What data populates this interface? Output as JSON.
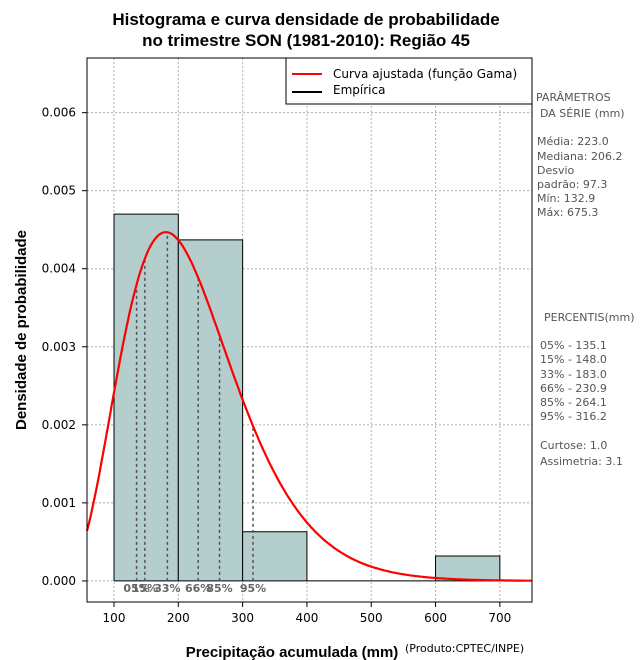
{
  "chart_data": {
    "type": "bar",
    "title": "Histograma e curva densidade de probabilidade",
    "subtitle": "no trimestre SON (1981-2010): Região 45",
    "xlabel": "Precipitação acumulada (mm)",
    "ylabel": "Densidade de probabilidade",
    "credit": "(Produto:CPTEC/INPE)",
    "xlim": [
      58,
      750
    ],
    "ylim": [
      -0.00027,
      0.0067
    ],
    "x_ticks": [
      100,
      200,
      300,
      400,
      500,
      600,
      700
    ],
    "y_ticks": [
      0.0,
      0.001,
      0.002,
      0.003,
      0.004,
      0.005,
      0.006
    ],
    "y_tick_labels": [
      "0.000",
      "0.001",
      "0.002",
      "0.003",
      "0.004",
      "0.005",
      "0.006"
    ],
    "grid": true,
    "bins": [
      {
        "x0": 100,
        "x1": 200,
        "density": 0.0047
      },
      {
        "x0": 200,
        "x1": 300,
        "density": 0.00437
      },
      {
        "x0": 300,
        "x1": 400,
        "density": 0.00063
      },
      {
        "x0": 400,
        "x1": 500,
        "density": 0.0
      },
      {
        "x0": 500,
        "x1": 600,
        "density": 0.0
      },
      {
        "x0": 600,
        "x1": 700,
        "density": 0.00032
      }
    ],
    "gamma_curve": {
      "mean": 223.0,
      "sd": 97.3
    },
    "legend": {
      "position": "top-right",
      "entries": [
        {
          "label": "Curva ajustada (função Gama)",
          "color": "#ff0000"
        },
        {
          "label": "Empírica",
          "color": "#000000"
        }
      ]
    },
    "percentiles": [
      {
        "label": "05%",
        "value": 135.1
      },
      {
        "label": "15%",
        "value": 148.0
      },
      {
        "label": "33%",
        "value": 183.0
      },
      {
        "label": "66%",
        "value": 230.9
      },
      {
        "label": "85%",
        "value": 264.1
      },
      {
        "label": "95%",
        "value": 316.2
      }
    ],
    "colors": {
      "bar_fill": "#b4cece",
      "curve": "#ff0000",
      "grid": "#b0b0b0",
      "percentile_line": "#555555",
      "percentile_label": "#666666"
    }
  },
  "side_panel": {
    "params_title_1": "PARÂMETROS",
    "params_title_2": "DA SÉRIE (mm)",
    "media": "Média:  223.0",
    "mediana": "Mediana:  206.2",
    "desvio": "Desvio",
    "padrao": "padrão:  97.3",
    "min": "Mín:  132.9",
    "max": "Máx:  675.3",
    "percentis_title": "PERCENTIS(mm)",
    "p05": "05% -  135.1",
    "p15": "15% -  148.0",
    "p33": "33% -  183.0",
    "p66": "66% -  230.9",
    "p85": "85% -  264.1",
    "p95": "95% -  316.2",
    "curtose": "Curtose:  1.0",
    "assimetria": "Assimetria:  3.1"
  }
}
